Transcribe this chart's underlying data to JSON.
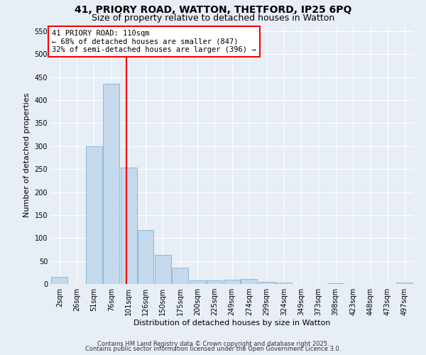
{
  "title_line1": "41, PRIORY ROAD, WATTON, THETFORD, IP25 6PQ",
  "title_line2": "Size of property relative to detached houses in Watton",
  "xlabel": "Distribution of detached houses by size in Watton",
  "ylabel": "Number of detached properties",
  "bin_starts": [
    2,
    26,
    51,
    76,
    101,
    126,
    150,
    175,
    200,
    225,
    249,
    274,
    299,
    324,
    349,
    373,
    398,
    423,
    448,
    473,
    497
  ],
  "bin_labels": [
    "2sqm",
    "26sqm",
    "51sqm",
    "76sqm",
    "101sqm",
    "126sqm",
    "150sqm",
    "175sqm",
    "200sqm",
    "225sqm",
    "249sqm",
    "274sqm",
    "299sqm",
    "324sqm",
    "349sqm",
    "373sqm",
    "398sqm",
    "423sqm",
    "448sqm",
    "473sqm",
    "497sqm"
  ],
  "heights": [
    15,
    0,
    300,
    435,
    253,
    118,
    63,
    35,
    8,
    8,
    10,
    11,
    5,
    3,
    0,
    0,
    2,
    0,
    0,
    0,
    3
  ],
  "bar_color": "#c5d9ed",
  "bar_edge_color": "#7fb3d3",
  "background_color": "#e8eef5",
  "grid_color": "#ffffff",
  "red_line_x": 110,
  "xlim_left": 2,
  "xlim_right": 522,
  "ylim": [
    0,
    560
  ],
  "yticks": [
    0,
    50,
    100,
    150,
    200,
    250,
    300,
    350,
    400,
    450,
    500,
    550
  ],
  "annotation_title": "41 PRIORY ROAD: 110sqm",
  "annotation_line1": "← 68% of detached houses are smaller (847)",
  "annotation_line2": "32% of semi-detached houses are larger (396) →",
  "footnote1": "Contains HM Land Registry data © Crown copyright and database right 2025.",
  "footnote2": "Contains public sector information licensed under the Open Government Licence 3.0.",
  "title_fontsize": 10,
  "subtitle_fontsize": 9,
  "annot_fontsize": 7.5,
  "axis_label_fontsize": 8,
  "tick_fontsize": 7
}
